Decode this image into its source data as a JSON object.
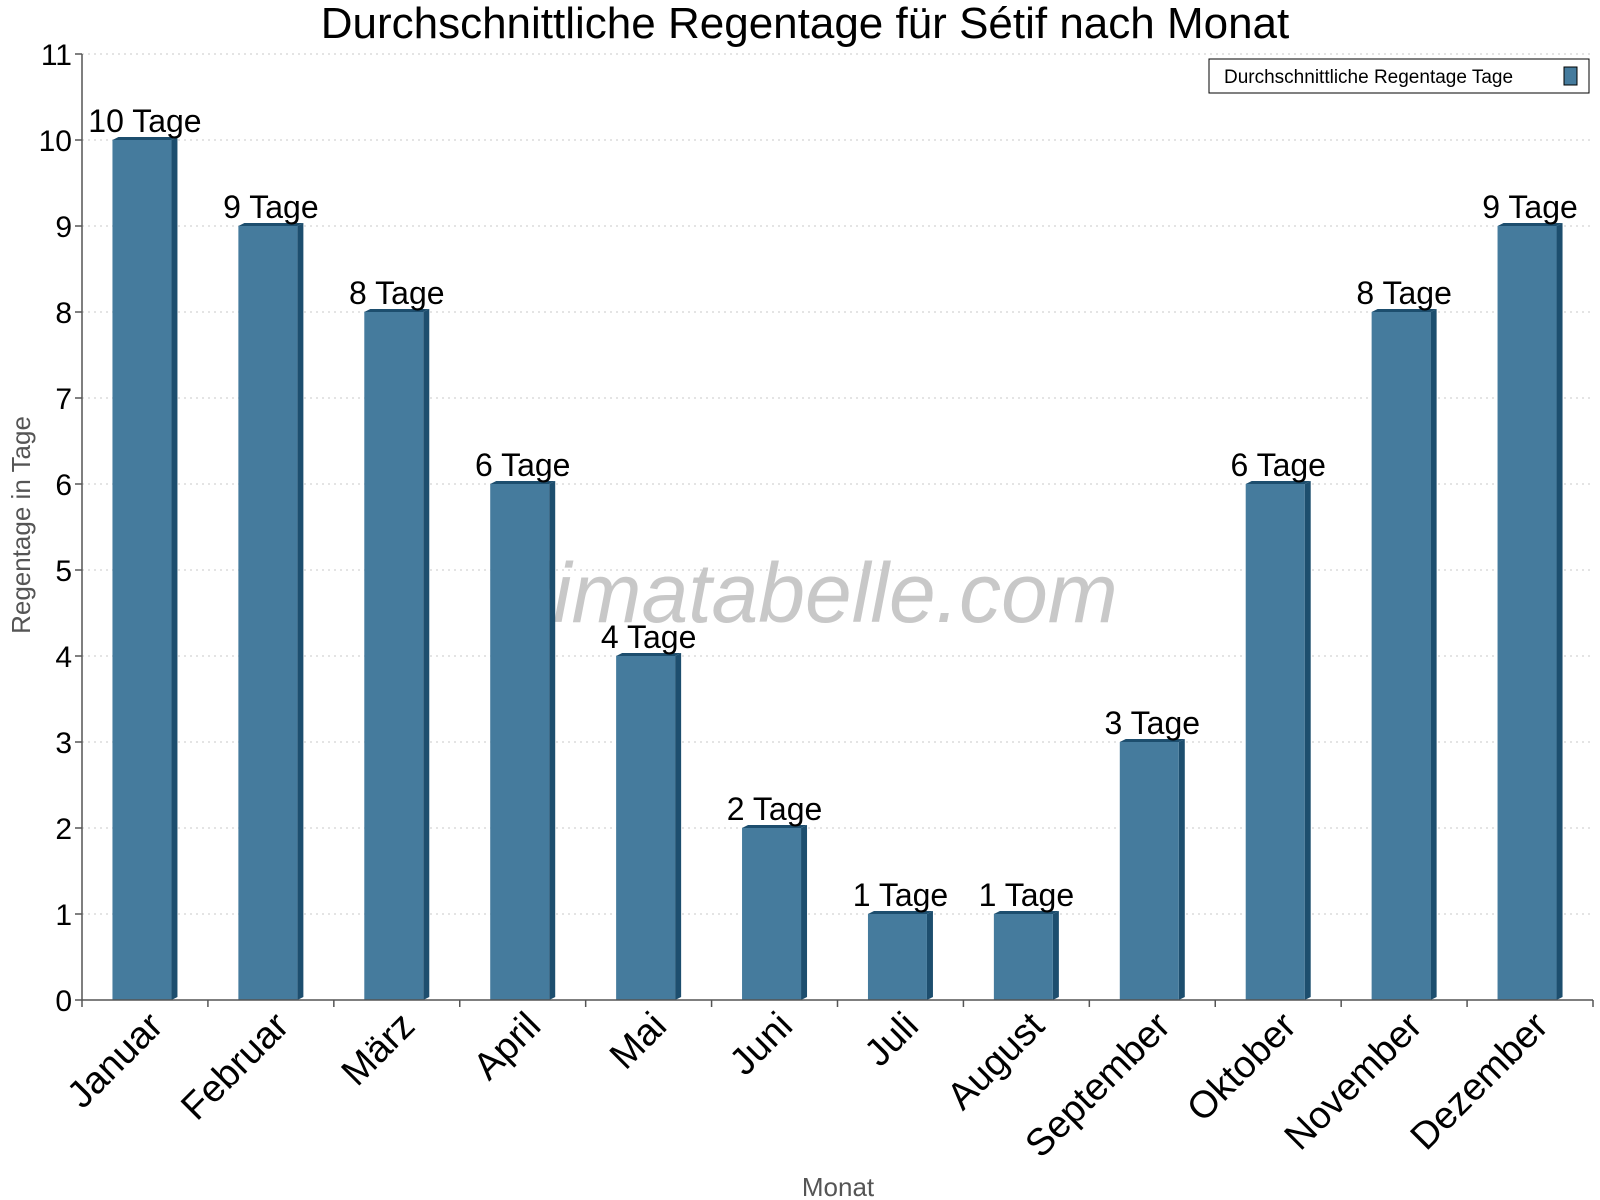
{
  "chart_data": {
    "type": "bar",
    "title": "Durchschnittliche Regentage für Sétif nach Monat",
    "xlabel": "Monat",
    "ylabel": "Regentage in Tage",
    "ylim": [
      0,
      11
    ],
    "yticks": [
      0,
      1,
      2,
      3,
      4,
      5,
      6,
      7,
      8,
      9,
      10,
      11
    ],
    "grid": true,
    "legend_position": "top-right",
    "categories": [
      "Januar",
      "Februar",
      "März",
      "April",
      "Mai",
      "Juni",
      "Juli",
      "August",
      "September",
      "Oktober",
      "November",
      "Dezember"
    ],
    "series": [
      {
        "name": "Durchschnittliche Regentage Tage",
        "values": [
          10,
          9,
          8,
          6,
          4,
          2,
          1,
          1,
          3,
          6,
          8,
          9
        ],
        "data_labels": [
          "10 Tage",
          "9 Tage",
          "8 Tage",
          "6 Tage",
          "4 Tage",
          "2 Tage",
          "1 Tage",
          "1 Tage",
          "3 Tage",
          "6 Tage",
          "8 Tage",
          "9 Tage"
        ],
        "color": "#457b9d",
        "shade_color": "#1d4e6e"
      }
    ]
  },
  "watermark": "klimatabelle.com"
}
